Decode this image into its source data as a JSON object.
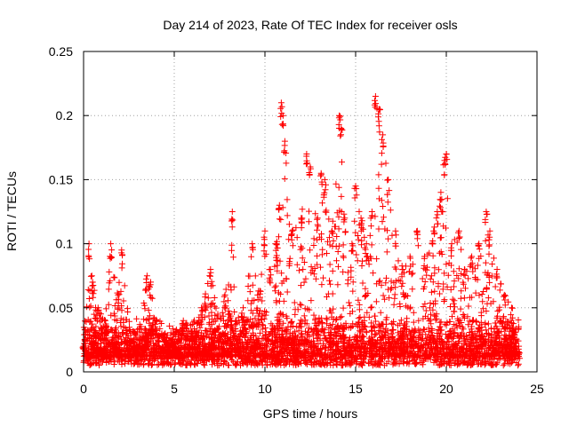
{
  "chart_data": {
    "type": "scatter",
    "title": "Day 214 of 2023, Rate Of TEC Index for receiver osls",
    "xlabel": "GPS time / hours",
    "ylabel": "ROTI / TECUs",
    "xlim": [
      0,
      25
    ],
    "ylim": [
      0,
      0.25
    ],
    "x_ticks": [
      0,
      5,
      10,
      15,
      20,
      25
    ],
    "x_tick_labels": [
      "0",
      "5",
      "10",
      "15",
      "20",
      "25"
    ],
    "y_ticks": [
      0,
      0.05,
      0.1,
      0.15,
      0.2,
      0.25
    ],
    "y_tick_labels": [
      "0",
      "0.05",
      "0.1",
      "0.15",
      "0.2",
      "0.25"
    ],
    "grid": true,
    "marker": "+",
    "color": "#ff0000",
    "series": [
      {
        "name": "ROTI",
        "x": [
          0.0,
          0.3,
          0.5,
          0.8,
          1.2,
          1.5,
          1.9,
          2.1,
          2.6,
          3.0,
          3.5,
          3.7,
          4.0,
          4.5,
          5.0,
          5.5,
          6.0,
          6.5,
          7.0,
          7.4,
          7.8,
          8.2,
          8.4,
          8.8,
          9.3,
          9.6,
          10.0,
          10.3,
          10.6,
          10.8,
          10.9,
          11.0,
          11.1,
          11.5,
          12.0,
          12.3,
          12.5,
          12.9,
          13.1,
          13.3,
          13.7,
          14.1,
          14.2,
          14.4,
          14.8,
          15.0,
          15.3,
          15.6,
          15.9,
          16.1,
          16.3,
          16.5,
          16.8,
          17.2,
          17.6,
          18.0,
          18.4,
          18.8,
          19.3,
          19.5,
          19.7,
          19.9,
          20.0,
          20.3,
          20.7,
          21.0,
          21.4,
          21.8,
          22.2,
          22.4,
          22.8,
          23.2,
          23.6,
          24.0
        ],
        "y": [
          0.02,
          0.1,
          0.07,
          0.05,
          0.04,
          0.1,
          0.06,
          0.095,
          0.03,
          0.02,
          0.075,
          0.07,
          0.04,
          0.03,
          0.02,
          0.04,
          0.03,
          0.05,
          0.08,
          0.045,
          0.06,
          0.125,
          0.04,
          0.05,
          0.1,
          0.06,
          0.11,
          0.08,
          0.1,
          0.13,
          0.21,
          0.2,
          0.18,
          0.11,
          0.12,
          0.17,
          0.16,
          0.12,
          0.155,
          0.15,
          0.11,
          0.2,
          0.19,
          0.12,
          0.1,
          0.145,
          0.12,
          0.1,
          0.125,
          0.215,
          0.205,
          0.185,
          0.15,
          0.11,
          0.08,
          0.09,
          0.11,
          0.09,
          0.11,
          0.125,
          0.14,
          0.165,
          0.17,
          0.1,
          0.11,
          0.08,
          0.09,
          0.1,
          0.125,
          0.11,
          0.08,
          0.06,
          0.05,
          0.02
        ],
        "baseline": [
          0.012,
          0.03
        ],
        "dense_range": [
          0.005,
          0.045
        ]
      }
    ]
  }
}
